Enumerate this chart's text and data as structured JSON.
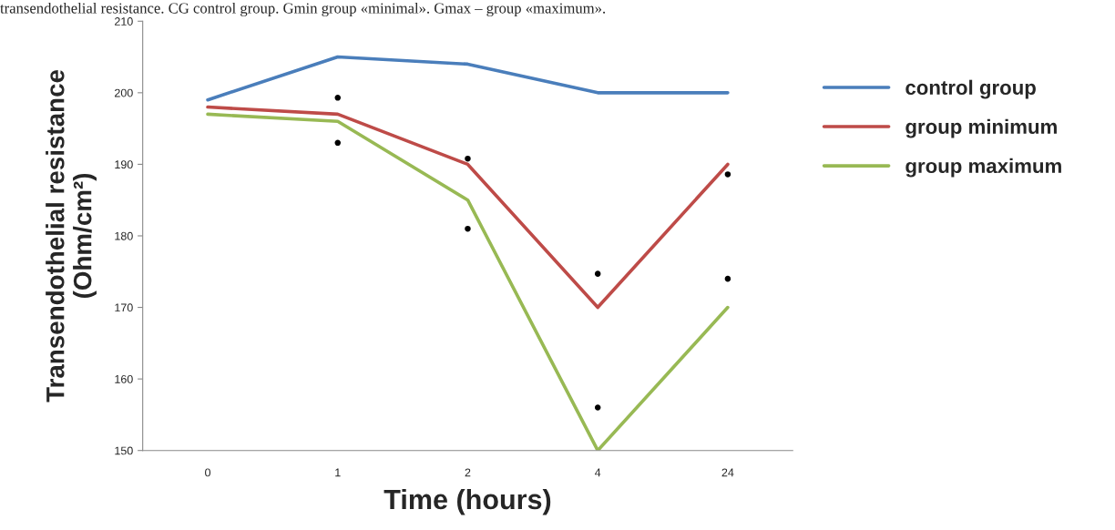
{
  "chart_data": {
    "type": "line",
    "title": "transendothelial resistance. CG control group. Gmin group «minimal». Gmax – group «maximum».",
    "xlabel": "Time (hours)",
    "ylabel": "Transendothelial resistance\n(Ohm/cm²)",
    "categories": [
      "0",
      "1",
      "2",
      "4",
      "24"
    ],
    "series": [
      {
        "name": "control group",
        "color": "#4a7ebb",
        "values": [
          199,
          205,
          204,
          200,
          200
        ]
      },
      {
        "name": "group minimum",
        "color": "#be4b48",
        "values": [
          198,
          197,
          190,
          170,
          190
        ]
      },
      {
        "name": "group maximum",
        "color": "#98b954",
        "values": [
          197,
          196,
          185,
          150,
          170
        ]
      },
      {
        "type": "scatter",
        "color": "#000000",
        "marker": "circle",
        "x": [
          "1",
          "1",
          "2",
          "2",
          "4",
          "4",
          "24",
          "24"
        ],
        "values": [
          199.3,
          193,
          190.8,
          181,
          174.7,
          156,
          188.6,
          174
        ]
      }
    ],
    "ylim": [
      150,
      210
    ],
    "yticks": [
      150,
      160,
      170,
      180,
      190,
      200,
      210
    ],
    "legend": "right",
    "grid": false,
    "marker": "none",
    "line_style": "solid"
  }
}
